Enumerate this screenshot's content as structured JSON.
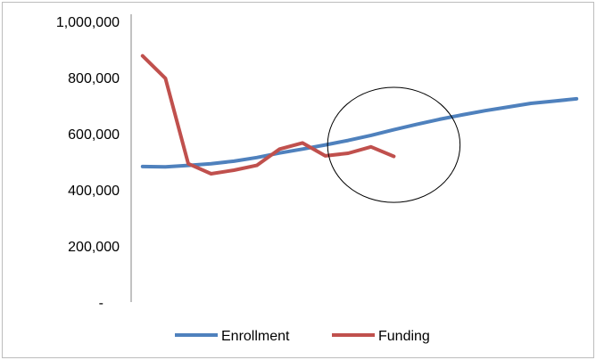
{
  "chart_data": {
    "type": "line",
    "title": "",
    "xlabel": "",
    "ylabel": "",
    "x": [
      1,
      2,
      3,
      4,
      5,
      6,
      7,
      8,
      9,
      10,
      11,
      12,
      13,
      14,
      15,
      16,
      17,
      18,
      19,
      20
    ],
    "ylim": [
      0,
      1000000
    ],
    "y_ticks": [
      {
        "value": 0,
        "label": "-"
      },
      {
        "value": 200000,
        "label": "200,000"
      },
      {
        "value": 400000,
        "label": "400,000"
      },
      {
        "value": 600000,
        "label": "600,000"
      },
      {
        "value": 800000,
        "label": "800,000"
      },
      {
        "value": 1000000,
        "label": "1,000,000"
      }
    ],
    "grid": false,
    "legend_position": "bottom",
    "series": [
      {
        "name": "Enrollment",
        "color": "#4f81bd",
        "values": [
          483000,
          482000,
          487000,
          493000,
          502000,
          515000,
          531000,
          545000,
          560000,
          576000,
          594000,
          614000,
          633000,
          651000,
          667000,
          682000,
          695000,
          708000,
          716000,
          724000
        ]
      },
      {
        "name": "Funding",
        "color": "#c0504d",
        "values": [
          877000,
          797000,
          493000,
          457000,
          470000,
          487000,
          545000,
          567000,
          521000,
          530000,
          553000,
          519000,
          null,
          null,
          null,
          null,
          null,
          null,
          null,
          null
        ]
      }
    ],
    "annotations": [
      {
        "type": "ellipse",
        "shape": "circle",
        "color": "#000000",
        "cx": 12,
        "cy": 560000,
        "rx": 2.9,
        "ry": 205000
      }
    ]
  }
}
